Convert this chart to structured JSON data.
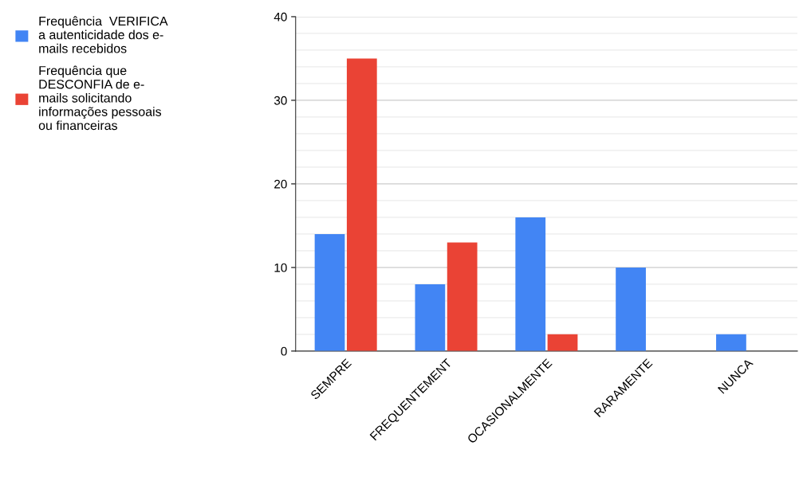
{
  "chart_data": {
    "type": "bar",
    "categories": [
      "SEMPRE",
      "FREQUENTEMENT",
      "OCASIONALMENTE",
      "RARAMENTE",
      "NUNCA"
    ],
    "series": [
      {
        "name": "Frequência  VERIFICA\na autenticidade dos e-\nmails recebidos",
        "color": "#4285f4",
        "values": [
          14,
          8,
          16,
          10,
          2
        ]
      },
      {
        "name": "Frequência que\nDESCONFIA de e-\nmails solicitando\ninformações pessoais\nou financeiras",
        "color": "#ea4335",
        "values": [
          35,
          13,
          2,
          0,
          0
        ]
      }
    ],
    "ylim": [
      0,
      40
    ],
    "yticks": [
      0,
      10,
      20,
      30,
      40
    ],
    "grid": "y",
    "legend": "left"
  }
}
